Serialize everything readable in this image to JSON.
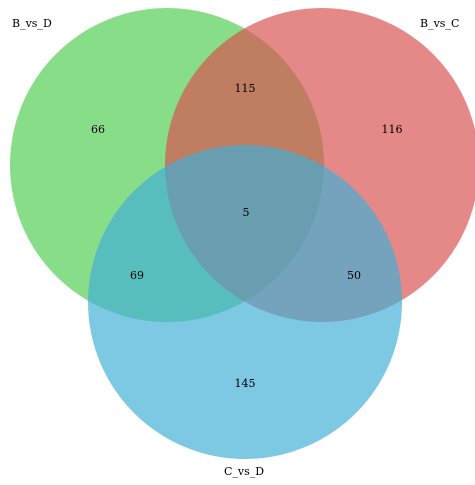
{
  "sets": [
    {
      "name": "B_vs_D",
      "color": "#4fcf4f"
    },
    {
      "name": "B_vs_C",
      "color": "#d94f4f"
    },
    {
      "name": "C_vs_D",
      "color": "#3faed6"
    }
  ],
  "regions": {
    "only_B_vs_D": "66",
    "only_B_vs_C": "116",
    "only_C_vs_D": "145",
    "B_vs_D_and_B_vs_C": "115",
    "B_vs_D_and_C_vs_D": "69",
    "B_vs_C_and_C_vs_D": "50",
    "all_three": "5"
  }
}
